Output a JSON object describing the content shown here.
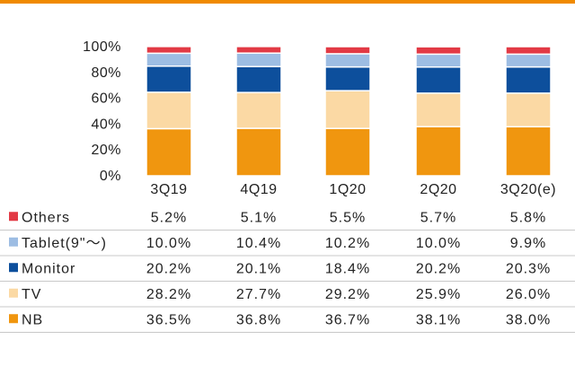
{
  "chart_data": {
    "type": "bar",
    "stacked": true,
    "categories": [
      "3Q19",
      "4Q19",
      "1Q20",
      "2Q20",
      "3Q20(e)"
    ],
    "y_ticks": [
      "0%",
      "20%",
      "40%",
      "60%",
      "80%",
      "100%"
    ],
    "ylim": [
      0,
      100
    ],
    "series": [
      {
        "name": "NB",
        "color": "#f0960f",
        "values": [
          36.5,
          36.8,
          36.7,
          38.1,
          38.0
        ],
        "labels": [
          "36.5%",
          "36.8%",
          "36.7%",
          "38.1%",
          "38.0%"
        ]
      },
      {
        "name": "TV",
        "color": "#fbd9a4",
        "values": [
          28.2,
          27.7,
          29.2,
          25.9,
          26.0
        ],
        "labels": [
          "28.2%",
          "27.7%",
          "29.2%",
          "25.9%",
          "26.0%"
        ]
      },
      {
        "name": "Monitor",
        "color": "#0d4f9c",
        "values": [
          20.2,
          20.1,
          18.4,
          20.2,
          20.3
        ],
        "labels": [
          "20.2%",
          "20.1%",
          "18.4%",
          "20.2%",
          "20.3%"
        ]
      },
      {
        "name": "Tablet(9\"～)",
        "color": "#9dbde3",
        "values": [
          10.0,
          10.4,
          10.2,
          10.0,
          9.9
        ],
        "labels": [
          "10.0%",
          "10.4%",
          "10.2%",
          "10.0%",
          "9.9%"
        ]
      },
      {
        "name": "Others",
        "color": "#e23a45",
        "values": [
          5.2,
          5.1,
          5.5,
          5.7,
          5.8
        ],
        "labels": [
          "5.2%",
          "5.1%",
          "5.5%",
          "5.7%",
          "5.8%"
        ]
      }
    ],
    "table_row_order": [
      "Others",
      "Tablet(9\"～)",
      "Monitor",
      "TV",
      "NB"
    ],
    "legend": "table-left",
    "grid": false,
    "accent_color": "#f08a00"
  }
}
